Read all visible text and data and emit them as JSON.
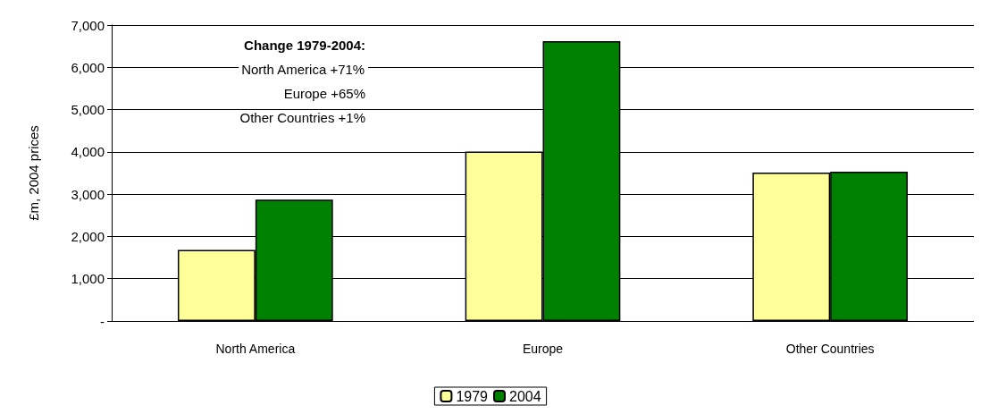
{
  "chart_data": {
    "type": "bar",
    "ylabel": "£m, 2004 prices",
    "categories": [
      "North America",
      "Europe",
      "Other Countries"
    ],
    "series": [
      {
        "name": "1979",
        "color": "#ffff99",
        "values": [
          1680,
          4010,
          3510
        ]
      },
      {
        "name": "2004",
        "color": "#008000",
        "values": [
          2870,
          6620,
          3530
        ]
      }
    ],
    "ylim": [
      0,
      7000
    ],
    "yticks": [
      {
        "value": 0,
        "label": "-"
      },
      {
        "value": 1000,
        "label": "1,000"
      },
      {
        "value": 2000,
        "label": "2,000"
      },
      {
        "value": 3000,
        "label": "3,000"
      },
      {
        "value": 4000,
        "label": "4,000"
      },
      {
        "value": 5000,
        "label": "5,000"
      },
      {
        "value": 6000,
        "label": "6,000"
      },
      {
        "value": 7000,
        "label": "7,000"
      }
    ],
    "grid": "y",
    "legend": "bottom",
    "annotations": [
      "Change 1979-2004:",
      "North America +71%",
      "Europe +65%",
      "Other Countries +1%"
    ]
  }
}
